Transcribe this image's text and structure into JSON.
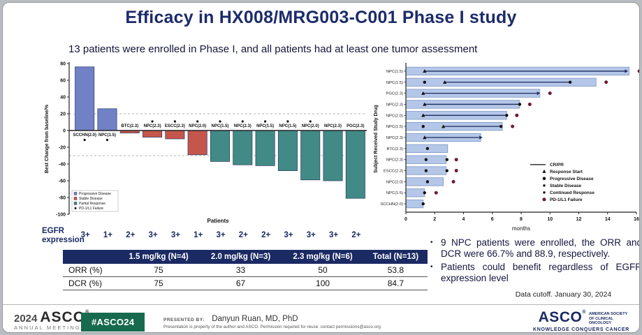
{
  "slide": {
    "title": "Efficacy in HX008/MRG003-C001 Phase I study",
    "subtitle": "13 patients were enrolled in Phase I, and all patients had at least one tumor assessment"
  },
  "chart_data": [
    {
      "type": "bar",
      "name": "waterfall",
      "ylabel": "Best Change from baseline/%",
      "xlabel": "Patients",
      "ylim": [
        -100,
        80
      ],
      "yticks": [
        80,
        60,
        40,
        20,
        0,
        -20,
        -40,
        -60,
        -80,
        -100
      ],
      "reference_lines": [
        20,
        -30
      ],
      "grid": false,
      "bars": [
        {
          "label": "SCCHN(2.0)",
          "value": 76,
          "response": "PD",
          "pd1_failure": true
        },
        {
          "label": "NPC(1.5)",
          "value": 26,
          "response": "PD",
          "pd1_failure": true
        },
        {
          "label": "BTC(2.3)",
          "value": -3,
          "response": "SD",
          "pd1_failure": false
        },
        {
          "label": "NPC(2.3)",
          "value": -8,
          "response": "SD",
          "pd1_failure": true
        },
        {
          "label": "ESCC(2.3)",
          "value": -10,
          "response": "SD",
          "pd1_failure": true
        },
        {
          "label": "NPC(2.0)",
          "value": -29,
          "response": "SD",
          "pd1_failure": true
        },
        {
          "label": "NPC(1.5)",
          "value": -37,
          "response": "PR",
          "pd1_failure": true
        },
        {
          "label": "NPC(2.3)",
          "value": -41,
          "response": "PR",
          "pd1_failure": true
        },
        {
          "label": "NPC(1.5)",
          "value": -42,
          "response": "PR",
          "pd1_failure": true
        },
        {
          "label": "NPC(1.5)",
          "value": -48,
          "response": "PR",
          "pd1_failure": true
        },
        {
          "label": "NPC(2.0)",
          "value": -59,
          "response": "PR",
          "pd1_failure": true
        },
        {
          "label": "NPC(2.3)",
          "value": -60,
          "response": "PR",
          "pd1_failure": false
        },
        {
          "label": "PGC(2.3)",
          "value": -81,
          "response": "PR",
          "pd1_failure": false
        }
      ],
      "colors": {
        "PD": "#7081c6",
        "SD": "#c5564b",
        "PR": "#418a85"
      },
      "legend": [
        {
          "label": "Progressive Disease",
          "color": "#7081c6"
        },
        {
          "label": "Stable Disease",
          "color": "#c5564b"
        },
        {
          "label": "Partial Response",
          "color": "#418a85"
        },
        {
          "label": "PD-1/L1 Failure",
          "marker": "dot"
        }
      ],
      "legend_position": "bottom-left"
    },
    {
      "type": "swimmer",
      "name": "duration-on-study",
      "ylabel": "Subject Received Study Drug",
      "xlabel": "months",
      "xlim": [
        0,
        16
      ],
      "xticks": [
        0,
        2,
        4,
        6,
        8,
        10,
        12,
        14,
        16
      ],
      "bar_color": "#b5c7e8",
      "maroon": "#6d1c38",
      "rows": [
        {
          "label": "NPC(1.5)",
          "bar": 15.5,
          "line": [
            1.3,
            15.2
          ],
          "ongoing": true,
          "triangles": [
            1.3
          ],
          "dots": [],
          "failure": 16.2
        },
        {
          "label": "NPC(1.5)",
          "bar": 13.2,
          "line": [
            2.7,
            11.4
          ],
          "ongoing": false,
          "triangles": [
            2.7
          ],
          "dots": [
            1.3,
            11.4
          ],
          "failure": 13.9
        },
        {
          "label": "PGC(2.3)",
          "bar": 9.3,
          "line": [
            1.2,
            9.1
          ],
          "ongoing": true,
          "triangles": [
            1.2
          ],
          "dots": [],
          "failure": 10.0
        },
        {
          "label": "NPC(2.3)",
          "bar": 7.9,
          "line": [
            1.3,
            7.9
          ],
          "ongoing": false,
          "triangles": [
            1.3
          ],
          "dots": [
            7.9
          ],
          "failure": 8.6
        },
        {
          "label": "NPC(2.0)",
          "bar": 7.0,
          "line": [
            1.2,
            7.0
          ],
          "ongoing": false,
          "triangles": [
            1.2
          ],
          "dots": [
            7.0
          ],
          "failure": 7.7
        },
        {
          "label": "NPC(1.5)",
          "bar": 6.7,
          "line": [
            2.6,
            6.6
          ],
          "ongoing": false,
          "triangles": [
            2.6
          ],
          "dots": [
            1.2,
            6.6
          ],
          "failure": 7.4
        },
        {
          "label": "NPC(2.3)",
          "bar": 5.2,
          "line": [
            1.3,
            5.1
          ],
          "ongoing": true,
          "triangles": [
            1.3
          ],
          "dots": []
        },
        {
          "label": "BTC(2.3)",
          "bar": 2.9,
          "dots": [
            1.5
          ]
        },
        {
          "label": "NPC(2.3)",
          "bar": 2.8,
          "dots": [
            1.4,
            2.85
          ],
          "failure": 3.5
        },
        {
          "label": "ESCC(2.3)",
          "bar": 2.8,
          "dots": [
            1.4,
            2.85
          ],
          "failure": 3.5
        },
        {
          "label": "NPC(2.0)",
          "bar": 2.6,
          "dots": [
            1.5
          ],
          "failure": 3.3
        },
        {
          "label": "NPC(1.5)",
          "bar": 1.3,
          "dots": [
            1.3
          ],
          "failure": 2.1
        },
        {
          "label": "SCCHN(2.0)",
          "bar": 1.2,
          "dots": [
            1.2
          ]
        }
      ],
      "legend": [
        {
          "label": "CR/PR",
          "marker": "line"
        },
        {
          "label": "Response Start",
          "marker": "triangle"
        },
        {
          "label": "Progressive Disease",
          "marker": "dot"
        },
        {
          "label": "Stable Disease",
          "marker": "dot-small"
        },
        {
          "label": "Continued Response",
          "marker": "dot-small"
        },
        {
          "label": "PD-1/L1 Failure",
          "marker": "dot-maroon"
        }
      ],
      "legend_position": "right"
    }
  ],
  "egfr": {
    "label": "EGFR expression",
    "values": [
      "3+",
      "1+",
      "2+",
      "3+",
      "3+",
      "1+",
      "3+",
      "2+",
      "2+",
      "3+",
      "3+",
      "3+",
      "2+"
    ]
  },
  "table": {
    "columns": [
      "",
      "1.5 mg/kg (N=4)",
      "2.0 mg/kg (N=3)",
      "2.3 mg/kg (N=6)",
      "Total (N=13)"
    ],
    "rows": [
      {
        "label": "ORR (%)",
        "values": [
          "75",
          "33",
          "50",
          "53.8"
        ]
      },
      {
        "label": "DCR (%)",
        "values": [
          "75",
          "67",
          "100",
          "84.7"
        ]
      }
    ],
    "header_color": "#1b2a63"
  },
  "bullets": [
    "9 NPC patients were enrolled, the ORR and DCR were 66.7% and 88.9, respectively.",
    "Patients could benefit regardless of EGFR expression level"
  ],
  "data_cutoff": "Data cutoff. January 30, 2024",
  "footer": {
    "year": "2024",
    "org": "ASCO",
    "meeting": "ANNUAL MEETING",
    "hashtag": "#ASCO24",
    "presented_by_label": "PRESENTED BY:",
    "presenter": "Danyun Ruan, MD, PhD",
    "permission": "Presentation is property of the author and ASCO. Permission required for reuse: contact permissions@asco.org",
    "logo": {
      "name": "ASCO",
      "society": "AMERICAN SOCIETY OF CLINICAL ONCOLOGY",
      "tagline": "KNOWLEDGE CONQUERS CANCER"
    }
  },
  "colors": {
    "title_navy": "#1c2b6a",
    "table_header": "#1b2a63",
    "badge_green": "#176a4e",
    "maroon": "#6d1c38"
  }
}
